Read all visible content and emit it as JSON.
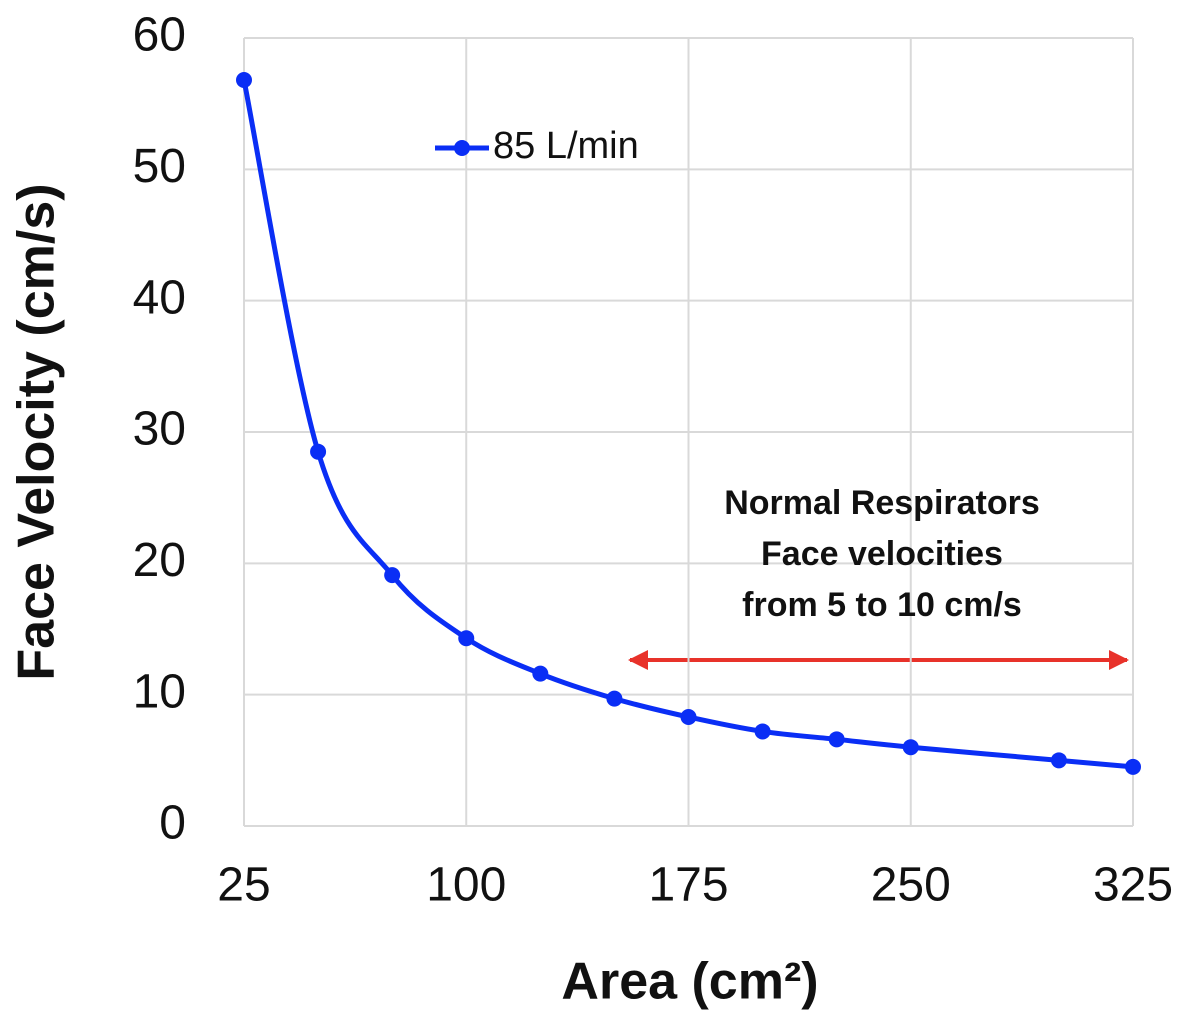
{
  "chart_data": {
    "type": "line",
    "x_label": "Area (cm²)",
    "y_label": "Face Velocity (cm/s)",
    "x": [
      25,
      50,
      75,
      100,
      125,
      150,
      175,
      200,
      225,
      250,
      300,
      325
    ],
    "series": [
      {
        "name": "85 L/min",
        "color": "#0a2ef5",
        "values": [
          56.8,
          28.5,
          19.1,
          14.3,
          11.6,
          9.7,
          8.3,
          7.2,
          6.6,
          6.0,
          5.0,
          4.5
        ]
      }
    ],
    "xlim": [
      25,
      325
    ],
    "xticks": [
      25,
      100,
      175,
      250,
      325
    ],
    "ylim": [
      0,
      60
    ],
    "yticks": [
      0,
      10,
      20,
      30,
      40,
      50,
      60
    ],
    "grid": true,
    "legend": "top-left",
    "annotation": [
      "Normal Respirators",
      "Face velocities",
      "from 5 to 10 cm/s"
    ]
  }
}
